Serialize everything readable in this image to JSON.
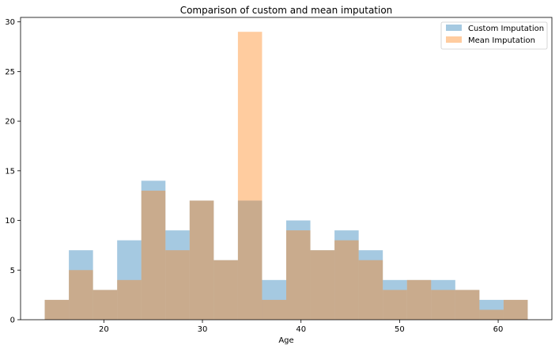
{
  "chart_data": {
    "type": "bar",
    "title": "Comparison of custom and mean imputation",
    "xlabel": "Age",
    "ylabel": "",
    "xlim": [
      11.55,
      65.45
    ],
    "ylim": [
      0,
      30.45
    ],
    "xticks": [
      20,
      30,
      40,
      50,
      60
    ],
    "yticks": [
      0,
      5,
      10,
      15,
      20,
      25,
      30
    ],
    "bin_edges": [
      14.0,
      16.45,
      18.9,
      21.35,
      23.8,
      26.25,
      28.7,
      31.15,
      33.6,
      36.05,
      38.5,
      40.95,
      43.4,
      45.85,
      48.3,
      50.75,
      53.2,
      55.65,
      58.1,
      60.55,
      63.0
    ],
    "series": [
      {
        "name": "Custom Imputation",
        "color": "#1f77b4",
        "alpha": 0.4,
        "values": [
          2,
          7,
          3,
          8,
          14,
          9,
          12,
          6,
          12,
          4,
          10,
          7,
          9,
          7,
          4,
          4,
          4,
          3,
          2,
          2
        ]
      },
      {
        "name": "Mean Imputation",
        "color": "#ff7f0e",
        "alpha": 0.4,
        "values": [
          2,
          5,
          3,
          4,
          13,
          7,
          12,
          6,
          29,
          2,
          9,
          7,
          8,
          6,
          3,
          4,
          3,
          3,
          1,
          2
        ]
      }
    ],
    "grid": false,
    "legend": "top-right"
  }
}
